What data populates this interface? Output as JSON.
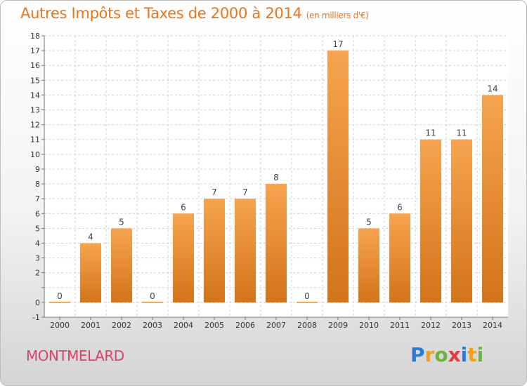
{
  "header": {
    "title": "Autres Impôts et Taxes de 2000 à 2014",
    "unit": "(en milliers d'€)"
  },
  "footer": {
    "place": "MONTMELARD",
    "logo": "Proxiti",
    "logo_letters": [
      {
        "ch": "P",
        "color": "#2a7bd1"
      },
      {
        "ch": "r",
        "color": "#f0a020"
      },
      {
        "ch": "o",
        "color": "#6db33f"
      },
      {
        "ch": "x",
        "color": "#e23b3b"
      },
      {
        "ch": "i",
        "color": "#2a7bd1"
      },
      {
        "ch": "t",
        "color": "#f0a020"
      },
      {
        "ch": "i",
        "color": "#6db33f"
      }
    ]
  },
  "colors": {
    "bar_top": "#f6a450",
    "bar_bottom": "#d4731b",
    "title": "#e8751a",
    "place": "#d9446d"
  },
  "chart_data": {
    "type": "bar",
    "categories": [
      "2000",
      "2001",
      "2002",
      "2003",
      "2004",
      "2005",
      "2006",
      "2007",
      "2008",
      "2009",
      "2010",
      "2011",
      "2012",
      "2013",
      "2014"
    ],
    "values": [
      0,
      4,
      5,
      0,
      6,
      7,
      7,
      8,
      0,
      17,
      5,
      6,
      11,
      11,
      14
    ],
    "data_labels": [
      "0",
      "4",
      "5",
      "0",
      "6",
      "7",
      "7",
      "8",
      "0",
      "17",
      "5",
      "6",
      "11",
      "11",
      "14"
    ],
    "ylim": [
      -1,
      18
    ],
    "yticks": [
      -1,
      0,
      1,
      2,
      3,
      4,
      5,
      6,
      7,
      8,
      9,
      10,
      11,
      12,
      13,
      14,
      15,
      16,
      17,
      18
    ],
    "ytick_labels": [
      "-1",
      "0",
      "",
      "2",
      "3",
      "4",
      "5",
      "6",
      "7",
      "8",
      "9",
      "10",
      "11",
      "12",
      "13",
      "14",
      "15",
      "16",
      "17",
      "18"
    ],
    "grid": true,
    "xlabel": "",
    "ylabel": ""
  }
}
